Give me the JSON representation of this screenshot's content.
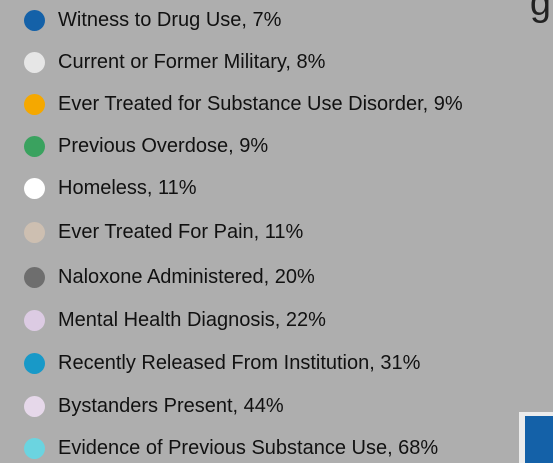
{
  "chart_data": {
    "type": "pie",
    "title": "",
    "corner_glyph": "g",
    "categories": [
      "Witness to Drug Use",
      "Current or Former Military",
      "Ever Treated for Substance Use Disorder",
      "Previous Overdose",
      "Homeless",
      "Ever Treated For Pain",
      "Naloxone Administered",
      "Mental Health Diagnosis",
      "Recently Released From Institution",
      "Bystanders Present",
      "Evidence of Previous Substance Use"
    ],
    "values": [
      7,
      8,
      9,
      9,
      11,
      11,
      20,
      22,
      31,
      44,
      68
    ],
    "labels": [
      "Witness to Drug Use, 7%",
      "Current or Former Military, 8%",
      "Ever Treated for Substance Use Disorder, 9%",
      "Previous Overdose, 9%",
      "Homeless, 11%",
      "Ever Treated For Pain, 11%",
      "Naloxone Administered, 20%",
      "Mental Health Diagnosis, 22%",
      "Recently Released From Institution, 31%",
      "Bystanders Present, 44%",
      "Evidence of Previous Substance Use, 68%"
    ],
    "colors": [
      "#1461a8",
      "#e6e6e6",
      "#f5a800",
      "#3aa25f",
      "#ffffff",
      "#cdbfb1",
      "#6e6e6e",
      "#dccbe3",
      "#1899c8",
      "#e6d8ea",
      "#6bd4e0"
    ],
    "legend_position": "left",
    "grid": false
  }
}
